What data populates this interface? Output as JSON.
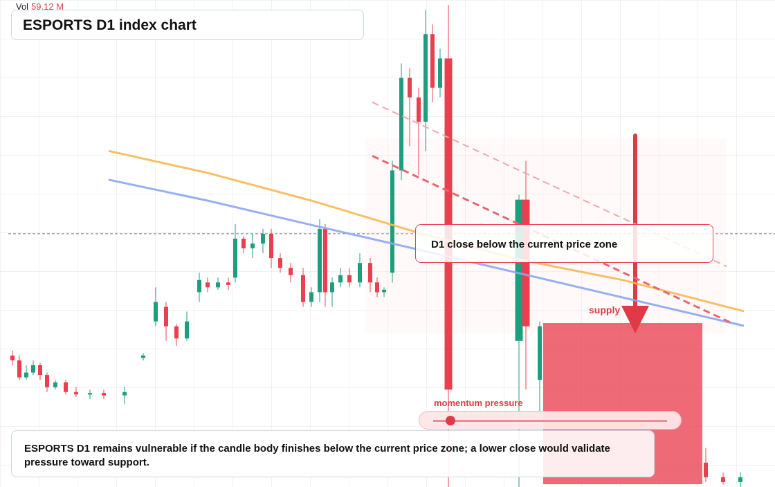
{
  "chart_data": {
    "type": "candlestick",
    "title": "ESPORTS D1 index chart",
    "volume_label": "Vol",
    "volume_value": "59.12 M",
    "xlim": [
      0,
      1120
    ],
    "ylim": [
      0,
      100
    ],
    "x": [
      18,
      28,
      38,
      48,
      58,
      68,
      80,
      95,
      110,
      130,
      150,
      180,
      207,
      225,
      240,
      255,
      270,
      288,
      300,
      315,
      330,
      340,
      352,
      365,
      380,
      392,
      405,
      420,
      438,
      450,
      462,
      470,
      480,
      492,
      505,
      520,
      535,
      545,
      555,
      567,
      580,
      592,
      605,
      615,
      625,
      636,
      648,
      750,
      760,
      780,
      1020,
      1045,
      1070
    ],
    "open": [
      27,
      26,
      22.5,
      23.5,
      25,
      23,
      20.5,
      21.5,
      19.5,
      19,
      19.3,
      18.8,
      26.5,
      34,
      37,
      33,
      30.5,
      40,
      42,
      41,
      42,
      43,
      51,
      49,
      50,
      52,
      47,
      45,
      43.5,
      38,
      40,
      53,
      40,
      42,
      43.5,
      42,
      46,
      42,
      40,
      44,
      65,
      84,
      80,
      75,
      93,
      82,
      88,
      30,
      59,
      22,
      5,
      2,
      1
    ],
    "high": [
      28,
      27,
      25,
      26,
      25.5,
      23.5,
      22,
      22,
      20.5,
      20,
      20,
      20.5,
      27.5,
      41,
      38,
      33.5,
      36,
      44,
      43,
      43,
      43,
      54,
      51.5,
      52,
      53,
      53,
      48,
      46,
      45,
      41,
      55,
      54,
      43,
      45,
      45,
      48,
      47,
      43,
      41,
      67,
      87,
      86,
      82,
      98,
      95,
      90,
      99,
      60,
      67,
      34,
      8,
      3,
      3
    ],
    "low": [
      25,
      22,
      22,
      23,
      22,
      19.5,
      20,
      19,
      18.5,
      18,
      18,
      17,
      26,
      33,
      30,
      29,
      30,
      38,
      40,
      40.5,
      40.5,
      42,
      48,
      47,
      48,
      45,
      44,
      42,
      37,
      37,
      38,
      37,
      37,
      41,
      41,
      41,
      40,
      39,
      39,
      42,
      63,
      70,
      64,
      69,
      79,
      80,
      0,
      0,
      20,
      15,
      1,
      0.5,
      0
    ],
    "close": [
      26,
      22.5,
      23.5,
      25,
      23,
      20.5,
      21.5,
      19.5,
      19,
      19.3,
      18.8,
      19.5,
      27,
      38,
      33,
      30.5,
      34,
      42.5,
      41,
      42,
      41.5,
      51,
      49,
      50,
      52,
      47,
      45,
      43.5,
      38,
      40,
      53,
      40,
      42,
      43.5,
      42,
      46,
      42,
      40,
      40.5,
      65,
      84,
      80,
      75,
      93,
      82,
      88,
      20,
      59,
      33,
      33,
      2,
      1,
      2
    ],
    "up_color": "#1f9e7e",
    "down_color": "#e8404f",
    "lines": [
      {
        "color": "#f7b955",
        "x": [
          157,
          300,
          450,
          600,
          750,
          900,
          1075
        ],
        "values": [
          69.0,
          64.5,
          58.8,
          52.4,
          46.7,
          42.5,
          36.1
        ]
      },
      {
        "color": "#8aa6f0",
        "x": [
          157,
          300,
          450,
          600,
          750,
          900,
          1075
        ],
        "values": [
          63.1,
          58.8,
          53.8,
          48.9,
          43.9,
          38.9,
          33.1
        ]
      }
    ],
    "trendlines": [
      {
        "color": "#e8666e",
        "x": [
          538,
          1060
        ],
        "values": [
          68.0,
          33.5
        ]
      },
      {
        "color": "#f1a6ab",
        "x": [
          538,
          1050
        ],
        "values": [
          79.0,
          45.3
        ]
      }
    ],
    "price_line": 52,
    "callout": "D1 close below the current price zone",
    "zone_label": "supply",
    "gauge_label": "momentum pressure",
    "note": "ESPORTS D1 remains vulnerable if the candle body finishes below the current price zone; a lower close would validate pressure toward support."
  }
}
